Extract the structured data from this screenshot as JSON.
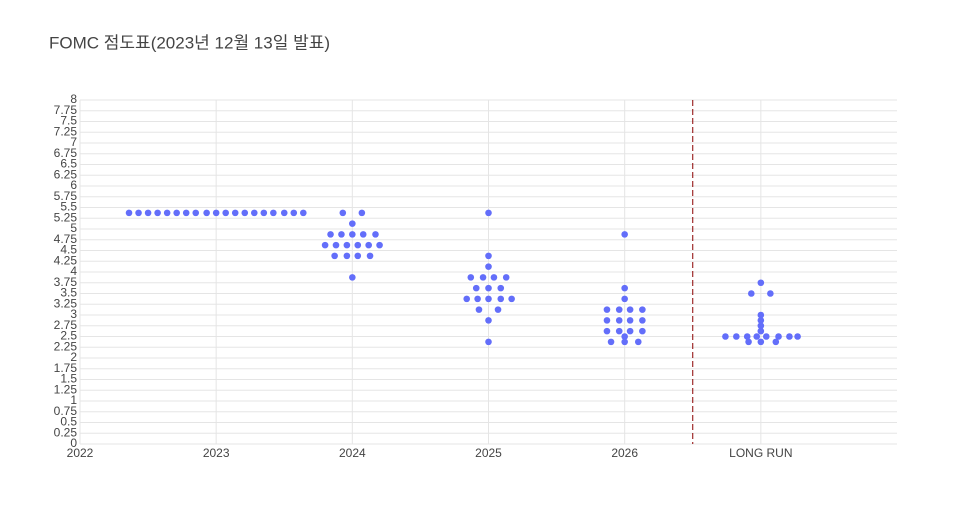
{
  "chart_data": {
    "type": "scatter",
    "title": "FOMC 점도표(2023년 12월 13일 발표)",
    "color": "#636efa",
    "x": [
      2022.36,
      2022.43,
      2022.5,
      2022.57,
      2022.64,
      2022.71,
      2022.78,
      2022.85,
      2022.93,
      2023.0,
      2023.07,
      2023.14,
      2023.21,
      2023.28,
      2023.35,
      2023.42,
      2023.5,
      2023.57,
      2023.64,
      2023.93,
      2024.07,
      2024.0,
      2023.84,
      2023.92,
      2024.0,
      2024.08,
      2024.17,
      2023.8,
      2023.88,
      2023.96,
      2024.04,
      2024.12,
      2024.2,
      2023.87,
      2023.96,
      2024.04,
      2024.13,
      2024.0,
      2025.0,
      2025.0,
      2025.0,
      2024.87,
      2024.96,
      2025.04,
      2025.13,
      2024.91,
      2025.0,
      2025.09,
      2024.84,
      2024.92,
      2025.0,
      2025.09,
      2025.17,
      2024.93,
      2025.07,
      2025.0,
      2025.0,
      2026.0,
      2026.0,
      2026.0,
      2025.87,
      2025.96,
      2026.04,
      2026.13,
      2025.87,
      2025.96,
      2026.04,
      2026.13,
      2025.87,
      2025.96,
      2026.04,
      2026.13,
      2026.0,
      2025.9,
      2026.0,
      2026.1,
      2027.0,
      2026.93,
      2027.07,
      2027.0,
      2027.0,
      2027.0,
      2027.0,
      2026.74,
      2026.82,
      2026.9,
      2026.97,
      2027.04,
      2027.13,
      2027.21,
      2027.27,
      2026.91,
      2027.0,
      2027.11
    ],
    "values": [
      5.375,
      5.375,
      5.375,
      5.375,
      5.375,
      5.375,
      5.375,
      5.375,
      5.375,
      5.375,
      5.375,
      5.375,
      5.375,
      5.375,
      5.375,
      5.375,
      5.375,
      5.375,
      5.375,
      5.375,
      5.375,
      5.125,
      4.875,
      4.875,
      4.875,
      4.875,
      4.875,
      4.625,
      4.625,
      4.625,
      4.625,
      4.625,
      4.625,
      4.375,
      4.375,
      4.375,
      4.375,
      3.875,
      5.375,
      4.375,
      4.125,
      3.875,
      3.875,
      3.875,
      3.875,
      3.625,
      3.625,
      3.625,
      3.375,
      3.375,
      3.375,
      3.375,
      3.375,
      3.125,
      3.125,
      2.875,
      2.375,
      4.875,
      3.625,
      3.375,
      3.125,
      3.125,
      3.125,
      3.125,
      2.875,
      2.875,
      2.875,
      2.875,
      2.625,
      2.625,
      2.625,
      2.625,
      2.5,
      2.375,
      2.375,
      2.375,
      3.75,
      3.5,
      3.5,
      3.0,
      2.875,
      2.75,
      2.625,
      2.5,
      2.5,
      2.5,
      2.5,
      2.5,
      2.5,
      2.5,
      2.5,
      2.375,
      2.375,
      2.375
    ],
    "xlim": [
      2022,
      2028
    ],
    "xticks": [
      2022,
      2023,
      2024,
      2025,
      2026,
      {
        "value": 2027,
        "label": "LONG RUN"
      }
    ],
    "ylim": [
      0,
      8
    ],
    "yticks": [
      0,
      0.25,
      0.5,
      0.75,
      1,
      1.25,
      1.5,
      1.75,
      2,
      2.25,
      2.5,
      2.75,
      3,
      3.25,
      3.5,
      3.75,
      4,
      4.25,
      4.5,
      4.75,
      5,
      5.25,
      5.5,
      5.75,
      6,
      6.25,
      6.5,
      6.75,
      7,
      7.25,
      7.5,
      7.75,
      8
    ],
    "vline_x": 2026.5,
    "vline_color": "#8b0000",
    "grid": true
  }
}
